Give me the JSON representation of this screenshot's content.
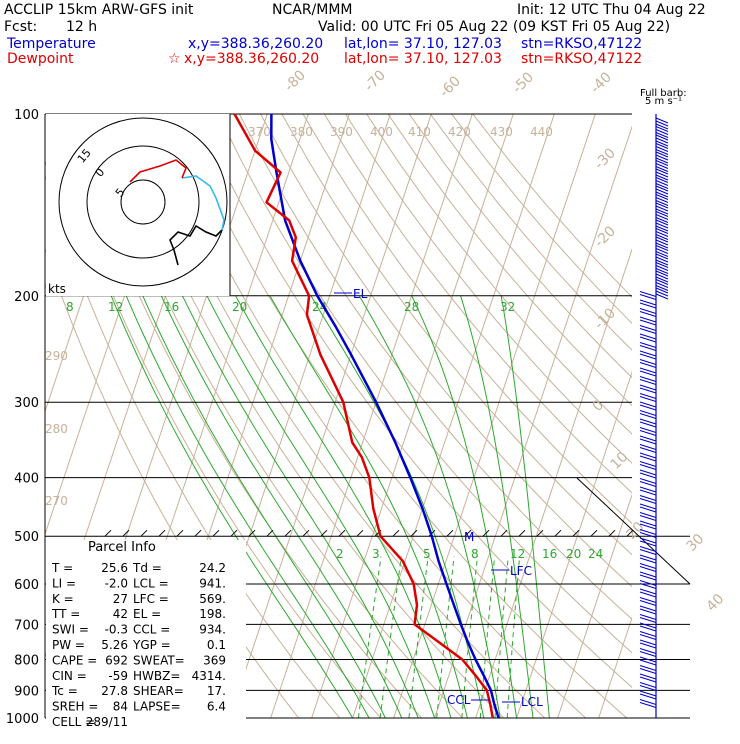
{
  "header": {
    "model": "ACCLIP 15km ARW-GFS init",
    "org": "NCAR/MMM",
    "init": "Init: 12 UTC Thu 04 Aug 22",
    "fcst_label": "Fcst:",
    "fcst_value": "12 h",
    "valid": "Valid: 00 UTC Fri 05 Aug 22 (09 KST Fri 05 Aug 22)",
    "temp_label": "Temperature",
    "temp_xy": "x,y=388.36,260.20",
    "temp_latlon": "lat,lon= 37.10, 127.03",
    "temp_stn": "stn=RKSO,47122",
    "dew_label": "Dewpoint",
    "dew_marker": "☆",
    "dew_xy": "x,y=388.36,260.20",
    "dew_latlon": "lat,lon= 37.10, 127.03",
    "dew_stn": "stn=RKSO,47122"
  },
  "colors": {
    "temperature": "#0000cc",
    "dewpoint": "#dd0000",
    "isotherm": "#c7b299",
    "theta": "#c7b299",
    "moist": "#2ea82e",
    "header_blue": "#0000cc",
    "header_red": "#dd0000"
  },
  "chart_data": {
    "type": "line",
    "subtype": "skew-T log-p",
    "pressure_levels": [
      "100",
      "200",
      "300",
      "400",
      "500",
      "600",
      "700",
      "800",
      "900",
      "1000"
    ],
    "isotherm_labels": [
      "-80",
      "-70",
      "-60",
      "-50",
      "-40",
      "-30",
      "-20",
      "-10",
      "0",
      "10",
      "20",
      "30",
      "40"
    ],
    "theta_labels": [
      "370",
      "380",
      "390",
      "400",
      "410",
      "420",
      "430",
      "440",
      "290",
      "280",
      "270"
    ],
    "moist_labels": [
      "8",
      "12",
      "16",
      "20",
      "24",
      "28",
      "32"
    ],
    "mixing_labels": [
      "2",
      "3",
      "5",
      "8",
      "12",
      "16",
      "20",
      "24"
    ],
    "series": [
      {
        "name": "Temperature",
        "points": [
          [
            1000,
            25.6
          ],
          [
            950,
            23.5
          ],
          [
            900,
            21.5
          ],
          [
            850,
            18.5
          ],
          [
            800,
            15.2
          ],
          [
            750,
            12.0
          ],
          [
            700,
            8.8
          ],
          [
            650,
            5.5
          ],
          [
            600,
            2.0
          ],
          [
            550,
            -1.8
          ],
          [
            500,
            -5.5
          ],
          [
            450,
            -10.0
          ],
          [
            400,
            -15.5
          ],
          [
            350,
            -22.0
          ],
          [
            300,
            -30.0
          ],
          [
            250,
            -40.0
          ],
          [
            225,
            -46.0
          ],
          [
            200,
            -53.0
          ],
          [
            175,
            -60.0
          ],
          [
            150,
            -67.0
          ],
          [
            125,
            -73.0
          ],
          [
            110,
            -77.0
          ],
          [
            100,
            -79.0
          ]
        ]
      },
      {
        "name": "Dewpoint",
        "points": [
          [
            1000,
            24.2
          ],
          [
            950,
            22.5
          ],
          [
            900,
            20.5
          ],
          [
            850,
            16.5
          ],
          [
            800,
            12.0
          ],
          [
            750,
            5.0
          ],
          [
            700,
            -2.5
          ],
          [
            650,
            -3.5
          ],
          [
            600,
            -6.0
          ],
          [
            550,
            -10.5
          ],
          [
            500,
            -18.0
          ],
          [
            450,
            -22.0
          ],
          [
            400,
            -25.5
          ],
          [
            370,
            -29.0
          ],
          [
            350,
            -32.5
          ],
          [
            300,
            -38.0
          ],
          [
            250,
            -47.5
          ],
          [
            215,
            -54.0
          ],
          [
            200,
            -55.0
          ],
          [
            175,
            -62.0
          ],
          [
            160,
            -63.0
          ],
          [
            150,
            -66.0
          ],
          [
            140,
            -73.0
          ],
          [
            125,
            -72.0
          ],
          [
            115,
            -80.0
          ],
          [
            100,
            -88.0
          ]
        ]
      }
    ],
    "markers": [
      "EL",
      "LFC",
      "CCL",
      "LCL",
      "M"
    ],
    "hodograph": {
      "unit": "kts",
      "rings": [
        "5",
        "10",
        "15"
      ],
      "rings_visible_labels": [
        "5",
        "0",
        "15"
      ]
    },
    "wind_barb_title": "Full barb:",
    "wind_barb_unit": "5 m s⁻¹",
    "ylabel": "",
    "xlabel": ""
  },
  "parcel": {
    "title": "Parcel Info",
    "rows": [
      [
        "T  =",
        "25.6",
        "Td =",
        "24.2"
      ],
      [
        "LI =",
        "-2.0",
        "LCL =",
        "941."
      ],
      [
        "K  =",
        "27",
        "LFC =",
        "569."
      ],
      [
        "TT =",
        "42",
        "EL =",
        "198."
      ],
      [
        "SWI =",
        "-0.3",
        "CCL =",
        "934."
      ],
      [
        "PW =",
        "5.26",
        "YGP =",
        "0.1"
      ],
      [
        "CAPE =",
        "692",
        "SWEAT=",
        "369"
      ],
      [
        "CIN =",
        "-59",
        "HWBZ=",
        "4314."
      ],
      [
        "Tc =",
        "27.8",
        "SHEAR=",
        "17."
      ],
      [
        "SREH =",
        "84",
        "LAPSE=",
        "6.4"
      ],
      [
        "CELL =",
        "289/11",
        "",
        ""
      ]
    ]
  }
}
